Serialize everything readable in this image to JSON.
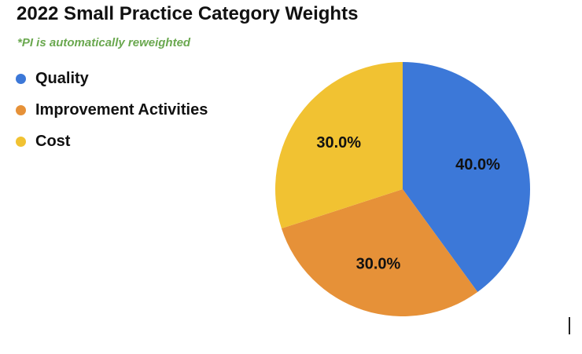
{
  "chart_data": {
    "type": "pie",
    "title": "2022 Small Practice Category Weights",
    "subtitle": "*PI is automatically reweighted",
    "categories": [
      "Quality",
      "Improvement Activities",
      "Cost"
    ],
    "values": [
      40.0,
      30.0,
      30.0
    ],
    "data_labels": [
      "40.0%",
      "30.0%",
      "30.0%"
    ],
    "colors": [
      "#3c78d8",
      "#e69138",
      "#f1c232"
    ],
    "start_angle_deg": 0,
    "direction": "clockwise",
    "legend": "top-left"
  },
  "colors": {
    "subtitle": "#6aa84f",
    "label_text": "#111111"
  }
}
